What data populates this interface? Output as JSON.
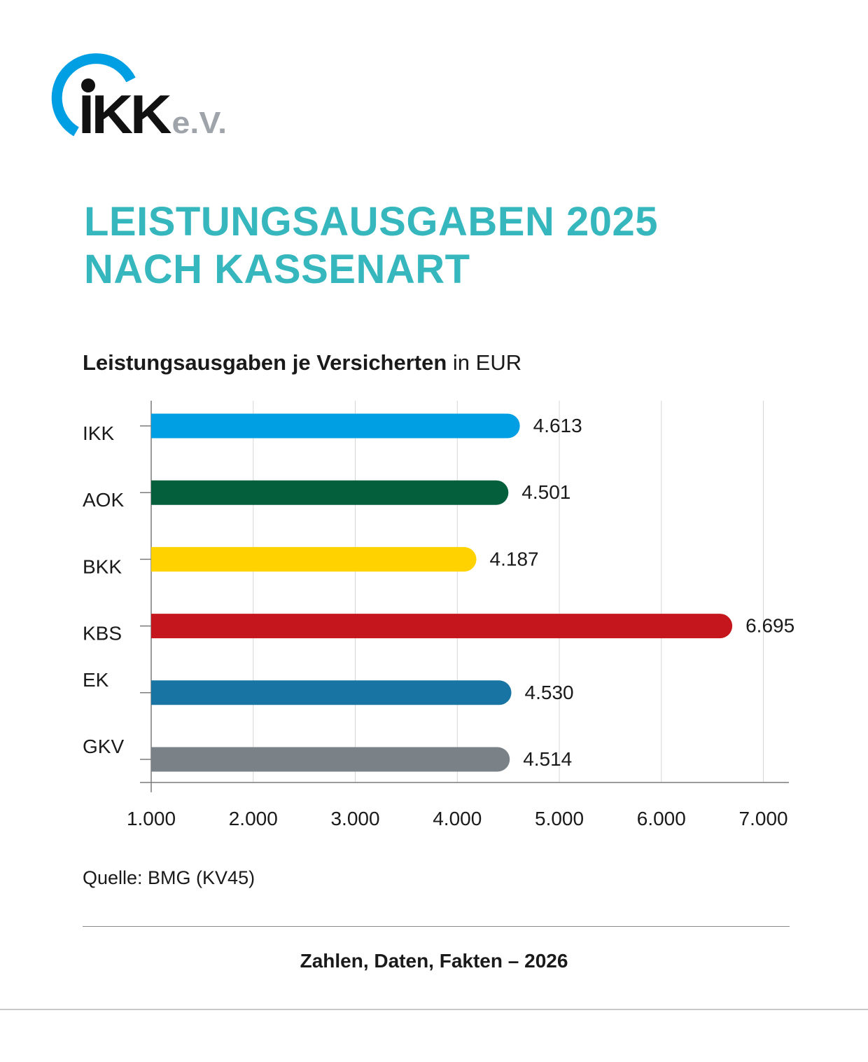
{
  "logo": {
    "text": "IKK e.V."
  },
  "title": {
    "line1": "LEISTUNGSAUSGABEN 2025",
    "line2": "NACH KASSENART"
  },
  "chart_heading": {
    "bold": "Leistungsausgaben je Versicherten",
    "unit": " in EUR"
  },
  "source": "Quelle: BMG (KV45)",
  "footer": "Zahlen, Daten, Fakten – 2026",
  "colors": {
    "accent": "#35b7bd",
    "logo_blue": "#009fe3",
    "logo_grey": "#9ea4a9",
    "grid": "#d6d6d6",
    "axis": "#7a7a7a"
  },
  "chart_data": {
    "type": "bar",
    "orientation": "horizontal",
    "title": "Leistungsausgaben je Versicherten in EUR",
    "categories": [
      "IKK",
      "AOK",
      "BKK",
      "KBS",
      "EK",
      "GKV"
    ],
    "values": [
      4613,
      4501,
      4187,
      6695,
      4530,
      4514
    ],
    "value_labels": [
      "4.613",
      "4.501",
      "4.187",
      "6.695",
      "4.530",
      "4.514"
    ],
    "bar_colors": [
      "#009fe3",
      "#045f3c",
      "#ffd200",
      "#c4161c",
      "#1774a3",
      "#7a8288"
    ],
    "xlim": [
      1000,
      7250
    ],
    "x_ticks": [
      1000,
      2000,
      3000,
      4000,
      5000,
      6000,
      7000
    ],
    "x_tick_labels": [
      "1.000",
      "2.000",
      "3.000",
      "4.000",
      "5.000",
      "6.000",
      "7.000"
    ],
    "grid": true,
    "legend": "none"
  }
}
